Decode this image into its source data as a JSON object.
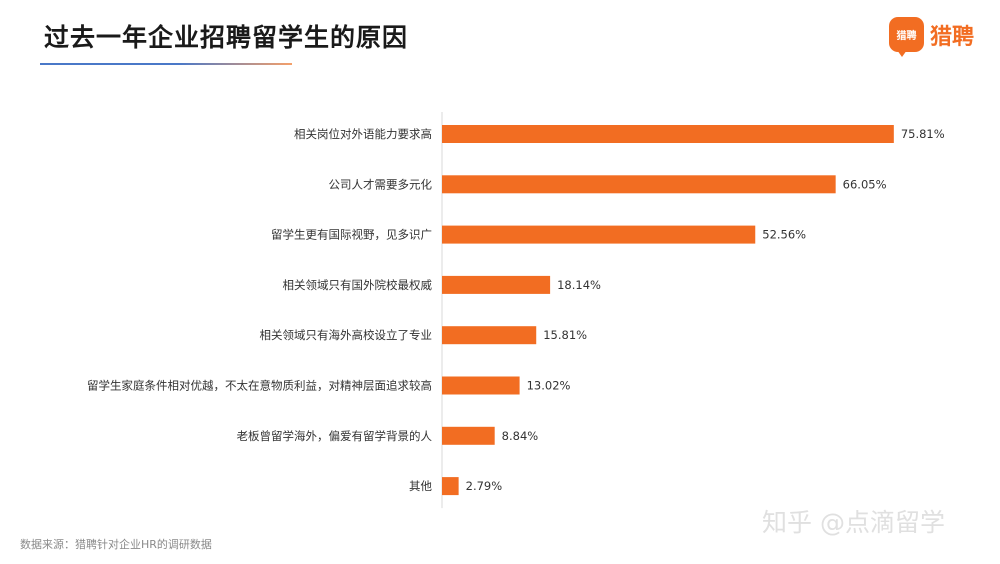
{
  "header": {
    "title": "过去一年企业招聘留学生的原因",
    "logo_badge_text": "猎聘",
    "logo_text": "猎聘"
  },
  "chart_data": {
    "type": "bar",
    "orientation": "horizontal",
    "categories": [
      "相关岗位对外语能力要求高",
      "公司人才需要多元化",
      "留学生更有国际视野，见多识广",
      "相关领域只有国外院校最权威",
      "相关领域只有海外高校设立了专业",
      "留学生家庭条件相对优越，不太在意物质利益，对精神层面追求较高",
      "老板曾留学海外，偏爱有留学背景的人",
      "其他"
    ],
    "values": [
      75.81,
      66.05,
      52.56,
      18.14,
      15.81,
      13.02,
      8.84,
      2.79
    ],
    "value_labels": [
      "75.81%",
      "66.05%",
      "52.56%",
      "18.14%",
      "15.81%",
      "13.02%",
      "8.84%",
      "2.79%"
    ],
    "unit": "%",
    "bar_color": "#f26d22",
    "grid": false,
    "legend": "none"
  },
  "footer": {
    "source": "数据来源：猎聘针对企业HR的调研数据",
    "watermark": "知乎 @点滴留学"
  }
}
